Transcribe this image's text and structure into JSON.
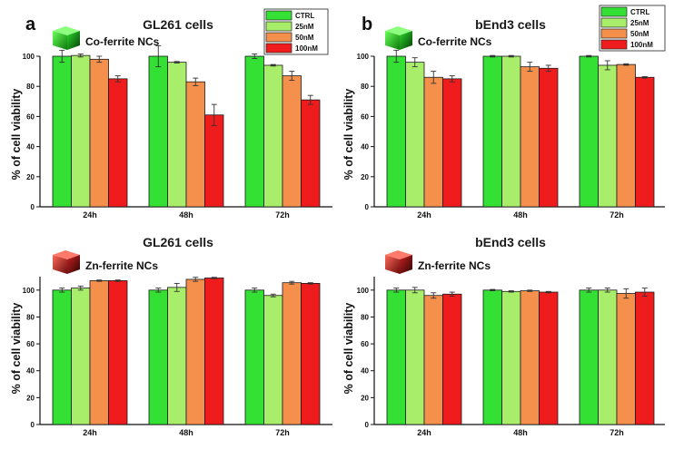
{
  "colors": {
    "CTRL": "#33e033",
    "25nM": "#a8ee6a",
    "50nM": "#f58f4c",
    "100nM": "#ee1c1c"
  },
  "panel_labels": [
    "a",
    "b"
  ],
  "legend": [
    "CTRL",
    "25nM",
    "50nM",
    "100nM"
  ],
  "chart_data": [
    {
      "type": "bar",
      "title": "GL261 cells",
      "subtitle": "Co-ferrite NCs",
      "cube_icon": "green-cube-icon",
      "ylabel": "% of cell viability",
      "xlabel": "",
      "ylim": [
        0,
        100
      ],
      "yticks": [
        "0",
        "20",
        "40",
        "60",
        "80",
        "100"
      ],
      "categories": [
        "24h",
        "48h",
        "72h"
      ],
      "series": [
        {
          "name": "CTRL",
          "values": [
            100,
            100,
            100
          ],
          "errors": [
            4,
            7,
            1.5
          ]
        },
        {
          "name": "25nM",
          "values": [
            100.5,
            96,
            94
          ],
          "errors": [
            1,
            0.5,
            0.5
          ]
        },
        {
          "name": "50nM",
          "values": [
            98,
            83,
            87
          ],
          "errors": [
            2,
            2.5,
            3
          ]
        },
        {
          "name": "100nM",
          "values": [
            85,
            61,
            71
          ],
          "errors": [
            2,
            7,
            3
          ]
        }
      ]
    },
    {
      "type": "bar",
      "title": "bEnd3 cells",
      "subtitle": "Co-ferrite NCs",
      "cube_icon": "green-cube-icon",
      "ylabel": "% of cell viability",
      "xlabel": "",
      "ylim": [
        0,
        100
      ],
      "yticks": [
        "0",
        "20",
        "40",
        "60",
        "80",
        "100"
      ],
      "categories": [
        "24h",
        "48h",
        "72h"
      ],
      "series": [
        {
          "name": "CTRL",
          "values": [
            100,
            100,
            100
          ],
          "errors": [
            4,
            0.5,
            0.5
          ]
        },
        {
          "name": "25nM",
          "values": [
            96,
            100,
            94
          ],
          "errors": [
            3,
            0.5,
            3
          ]
        },
        {
          "name": "50nM",
          "values": [
            86,
            93,
            94.5
          ],
          "errors": [
            4,
            3,
            0.5
          ]
        },
        {
          "name": "100nM",
          "values": [
            85,
            92,
            86
          ],
          "errors": [
            2,
            2,
            0.5
          ]
        }
      ]
    },
    {
      "type": "bar",
      "title": "GL261 cells",
      "subtitle": "Zn-ferrite NCs",
      "cube_icon": "red-cube-icon",
      "ylabel": "% of cell viability",
      "xlabel": "",
      "ylim": [
        0,
        110
      ],
      "yticks": [
        "0",
        "20",
        "40",
        "60",
        "80",
        "100"
      ],
      "categories": [
        "24h",
        "48h",
        "72h"
      ],
      "series": [
        {
          "name": "CTRL",
          "values": [
            100,
            100,
            100
          ],
          "errors": [
            1.5,
            1.5,
            1.5
          ]
        },
        {
          "name": "25nM",
          "values": [
            101.5,
            102,
            96
          ],
          "errors": [
            1.5,
            3,
            1
          ]
        },
        {
          "name": "50nM",
          "values": [
            107,
            108,
            105.5
          ],
          "errors": [
            0.5,
            1.5,
            1
          ]
        },
        {
          "name": "100nM",
          "values": [
            107,
            109,
            105
          ],
          "errors": [
            0.5,
            0.5,
            0.5
          ]
        }
      ]
    },
    {
      "type": "bar",
      "title": "bEnd3 cells",
      "subtitle": "Zn-ferrite NCs",
      "cube_icon": "red-cube-icon",
      "ylabel": "% of cell viability",
      "xlabel": "",
      "ylim": [
        0,
        110
      ],
      "yticks": [
        "0",
        "20",
        "40",
        "60",
        "80",
        "100"
      ],
      "categories": [
        "24h",
        "48h",
        "72h"
      ],
      "series": [
        {
          "name": "CTRL",
          "values": [
            100,
            100,
            100
          ],
          "errors": [
            1.5,
            0.5,
            1.5
          ]
        },
        {
          "name": "25nM",
          "values": [
            100,
            99,
            100
          ],
          "errors": [
            2,
            0.5,
            1.5
          ]
        },
        {
          "name": "50nM",
          "values": [
            96,
            99.5,
            97.5
          ],
          "errors": [
            2,
            0.5,
            3.5
          ]
        },
        {
          "name": "100nM",
          "values": [
            97,
            98.5,
            98.5
          ],
          "errors": [
            1.5,
            0.5,
            3
          ]
        }
      ]
    }
  ]
}
